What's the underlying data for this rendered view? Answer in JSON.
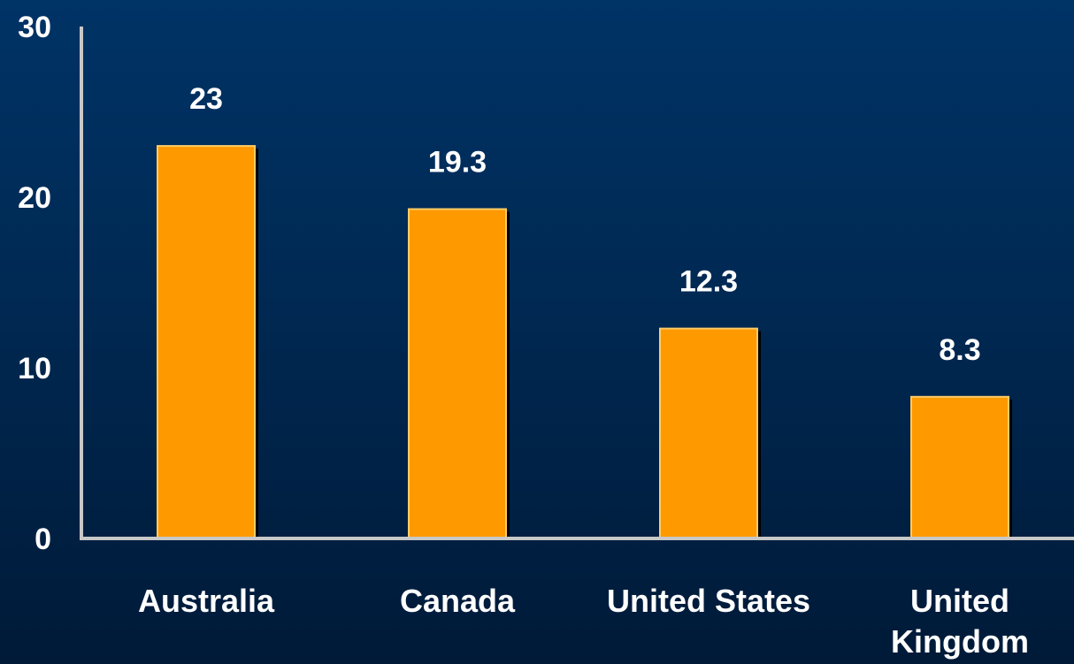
{
  "chart_data": {
    "type": "bar",
    "categories": [
      "Australia",
      "Canada",
      "United States",
      "United Kingdom"
    ],
    "category_label_lines": [
      [
        "Australia"
      ],
      [
        "Canada"
      ],
      [
        "United States"
      ],
      [
        "United",
        "Kingdom"
      ]
    ],
    "values": [
      23,
      19.3,
      12.3,
      8.3
    ],
    "data_labels": [
      "23",
      "19.3",
      "12.3",
      "8.3"
    ],
    "title": "",
    "xlabel": "",
    "ylabel": "",
    "ylim": [
      0,
      30
    ],
    "yticks": [
      0,
      10,
      20,
      30
    ],
    "ytick_labels": [
      "0",
      "10",
      "20",
      "30"
    ],
    "grid": false,
    "colors": {
      "bar": "#ff9900",
      "bar_border": "#ffcc66",
      "bar_shadow": "#000000",
      "axis": "#c8c8c8",
      "text": "#ffffff"
    }
  }
}
